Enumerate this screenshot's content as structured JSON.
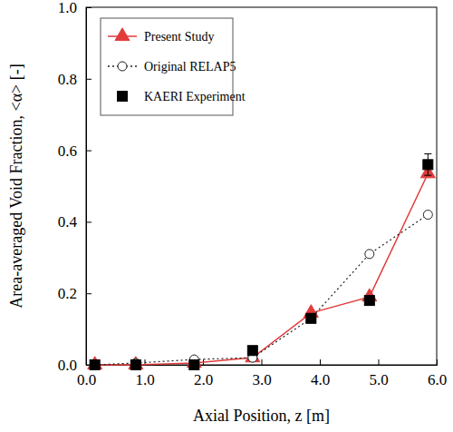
{
  "chart_data": {
    "type": "line",
    "x_label": "Axial Position, z [m]",
    "y_label": "Area-averaged Void Fraction, <α> [-]",
    "x": [
      0.15,
      0.85,
      1.85,
      2.85,
      3.85,
      4.85,
      5.85
    ],
    "series": [
      {
        "name": "Present Study",
        "color": "#e23b3b",
        "marker": "triangle",
        "line_style": "solid",
        "values": [
          0.0,
          0.0,
          0.005,
          0.02,
          0.145,
          0.19,
          0.535
        ]
      },
      {
        "name": "Original RELAP5",
        "color": "#222222",
        "marker": "circle-open",
        "line_style": "dotted",
        "values": [
          0.0,
          0.005,
          0.015,
          0.02,
          0.13,
          0.31,
          0.42
        ]
      },
      {
        "name": "KAERI Experiment",
        "color": "#000000",
        "marker": "square",
        "line_style": "none",
        "values": [
          0.0,
          0.0,
          0.0,
          0.04,
          0.13,
          0.18,
          0.56
        ],
        "errors": [
          0,
          0,
          0,
          0,
          0,
          0,
          0.03
        ]
      }
    ],
    "xlim": [
      0,
      6
    ],
    "xticks": [
      {
        "value": 0,
        "label": "0.0"
      },
      {
        "value": 1,
        "label": "1.0"
      },
      {
        "value": 2,
        "label": "2.0"
      },
      {
        "value": 3,
        "label": "3.0"
      },
      {
        "value": 4,
        "label": "4.0"
      },
      {
        "value": 5,
        "label": "5.0"
      },
      {
        "value": 6,
        "label": "6.0"
      }
    ],
    "ylim": [
      0,
      1
    ],
    "yticks": [
      {
        "value": 0,
        "label": "0.0"
      },
      {
        "value": 0.2,
        "label": "0.2"
      },
      {
        "value": 0.4,
        "label": "0.4"
      },
      {
        "value": 0.6,
        "label": "0.6"
      },
      {
        "value": 0.8,
        "label": "0.8"
      },
      {
        "value": 1,
        "label": "1.0"
      }
    ],
    "grid": false,
    "legend": "upper left"
  }
}
